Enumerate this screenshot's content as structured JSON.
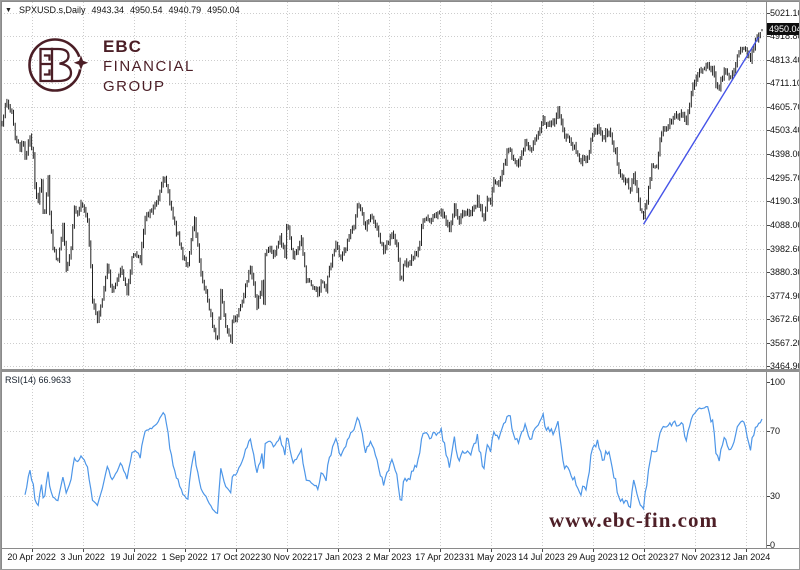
{
  "header": {
    "collapse_icon": "▼",
    "symbol": "SPXUSD.s,Daily",
    "open": "4943.34",
    "high": "4950.54",
    "low": "4940.79",
    "close": "4950.04"
  },
  "logo": {
    "line1": "EBC",
    "line2": "FINANCIAL",
    "line3": "GROUP",
    "color": "#4b1e26"
  },
  "watermark": {
    "text": "www.ebc-fin.com",
    "color": "#4e1f27"
  },
  "rsi_panel": {
    "label": "RSI(14) 66.9633",
    "scale_labels": [
      "100",
      "70",
      "30",
      "0"
    ],
    "line_color": "#4d96e8"
  },
  "price_scale": {
    "current": "4950.04"
  },
  "chart_data": {
    "type": "ohlc",
    "symbol": "SPXUSD.s",
    "timeframe": "Daily",
    "title": "SPXUSD.s,Daily 4943.34 4950.54 4940.79 4950.04",
    "last_bar": {
      "open": 4943.34,
      "high": 4950.54,
      "low": 4940.79,
      "close": 4950.04
    },
    "bar_color": "#222222",
    "grid": "dotted",
    "legend_position": "none",
    "y_ticks": [
      5021.1,
      4918.8,
      4813.4,
      4711.1,
      4605.7,
      4503.4,
      4398.0,
      4295.7,
      4190.3,
      4088.0,
      3982.6,
      3880.3,
      3774.9,
      3672.6,
      3567.2,
      3464.9
    ],
    "ylim": [
      3464.9,
      5021.1
    ],
    "x_ticks": [
      "20 Apr 2022",
      "3 Jun 2022",
      "19 Jul 2022",
      "1 Sep 2022",
      "17 Oct 2022",
      "30 Nov 2022",
      "17 Jan 2023",
      "2 Mar 2023",
      "17 Apr 2023",
      "31 May 2023",
      "14 Jul 2023",
      "29 Aug 2023",
      "12 Oct 2023",
      "27 Nov 2023",
      "12 Jan 2024"
    ],
    "x_tick_bars": [
      18,
      49,
      80,
      111,
      142,
      173,
      204,
      235,
      266,
      297,
      328,
      359,
      390,
      421,
      452
    ],
    "bars_total": 463,
    "price_anchors": [
      [
        0,
        4520
      ],
      [
        2,
        4631
      ],
      [
        6,
        4582
      ],
      [
        8,
        4481
      ],
      [
        11,
        4413
      ],
      [
        13,
        4446
      ],
      [
        14,
        4393
      ],
      [
        17,
        4462
      ],
      [
        19,
        4393
      ],
      [
        20,
        4272
      ],
      [
        22,
        4175
      ],
      [
        24,
        4287
      ],
      [
        25,
        4132
      ],
      [
        26,
        4155
      ],
      [
        28,
        4300
      ],
      [
        29,
        4147
      ],
      [
        31,
        3991
      ],
      [
        34,
        3930
      ],
      [
        37,
        4089
      ],
      [
        39,
        3900
      ],
      [
        42,
        3979
      ],
      [
        44,
        4158
      ],
      [
        46,
        4132
      ],
      [
        48,
        4177
      ],
      [
        52,
        4116
      ],
      [
        54,
        3901
      ],
      [
        55,
        3750
      ],
      [
        58,
        3667
      ],
      [
        61,
        3765
      ],
      [
        64,
        3912
      ],
      [
        67,
        3785
      ],
      [
        72,
        3899
      ],
      [
        76,
        3790
      ],
      [
        79,
        3937
      ],
      [
        82,
        3962
      ],
      [
        84,
        3921
      ],
      [
        87,
        4130
      ],
      [
        91,
        4152
      ],
      [
        95,
        4210
      ],
      [
        98,
        4305
      ],
      [
        101,
        4228
      ],
      [
        106,
        4058
      ],
      [
        110,
        3955
      ],
      [
        113,
        3908
      ],
      [
        117,
        4110
      ],
      [
        121,
        3873
      ],
      [
        124,
        3790
      ],
      [
        128,
        3647
      ],
      [
        131,
        3586
      ],
      [
        133,
        3791
      ],
      [
        136,
        3640
      ],
      [
        139,
        3577
      ],
      [
        140,
        3670
      ],
      [
        142,
        3678
      ],
      [
        146,
        3753
      ],
      [
        151,
        3901
      ],
      [
        152,
        3872
      ],
      [
        155,
        3720
      ],
      [
        158,
        3828
      ],
      [
        159,
        3748
      ],
      [
        160,
        3956
      ],
      [
        163,
        3992
      ],
      [
        165,
        3947
      ],
      [
        169,
        4027
      ],
      [
        172,
        3958
      ],
      [
        173,
        4080
      ],
      [
        174,
        4077
      ],
      [
        177,
        3941
      ],
      [
        182,
        4020
      ],
      [
        185,
        3852
      ],
      [
        189,
        3822
      ],
      [
        192,
        3783
      ],
      [
        194,
        3840
      ],
      [
        197,
        3808
      ],
      [
        199,
        3892
      ],
      [
        203,
        3999
      ],
      [
        206,
        3929
      ],
      [
        208,
        3973
      ],
      [
        212,
        4060
      ],
      [
        214,
        4077
      ],
      [
        216,
        4180
      ],
      [
        221,
        4081
      ],
      [
        224,
        4136
      ],
      [
        227,
        4079
      ],
      [
        232,
        3970
      ],
      [
        233,
        3983
      ],
      [
        237,
        4046
      ],
      [
        240,
        3992
      ],
      [
        242,
        3862
      ],
      [
        243,
        3856
      ],
      [
        244,
        3920
      ],
      [
        247,
        3917
      ],
      [
        250,
        3937
      ],
      [
        253,
        3978
      ],
      [
        256,
        4109
      ],
      [
        260,
        4105
      ],
      [
        265,
        4138
      ],
      [
        267,
        4155
      ],
      [
        272,
        4071
      ],
      [
        275,
        4169
      ],
      [
        278,
        4091
      ],
      [
        280,
        4136
      ],
      [
        284,
        4131
      ],
      [
        289,
        4198
      ],
      [
        293,
        4115
      ],
      [
        295,
        4205
      ],
      [
        297,
        4180
      ],
      [
        299,
        4282
      ],
      [
        302,
        4268
      ],
      [
        308,
        4426
      ],
      [
        309,
        4410
      ],
      [
        314,
        4348
      ],
      [
        318,
        4450
      ],
      [
        321,
        4411
      ],
      [
        325,
        4472
      ],
      [
        329,
        4555
      ],
      [
        331,
        4535
      ],
      [
        336,
        4537
      ],
      [
        338,
        4589
      ],
      [
        342,
        4478
      ],
      [
        345,
        4468
      ],
      [
        352,
        4370
      ],
      [
        356,
        4376
      ],
      [
        359,
        4497
      ],
      [
        361,
        4508
      ],
      [
        362,
        4516
      ],
      [
        365,
        4465
      ],
      [
        369,
        4505
      ],
      [
        373,
        4402
      ],
      [
        375,
        4330
      ],
      [
        378,
        4274
      ],
      [
        380,
        4288
      ],
      [
        382,
        4229
      ],
      [
        384,
        4309
      ],
      [
        386,
        4224
      ],
      [
        388,
        4160
      ],
      [
        390,
        4117
      ],
      [
        393,
        4238
      ],
      [
        395,
        4358
      ],
      [
        398,
        4347
      ],
      [
        401,
        4496
      ],
      [
        404,
        4514
      ],
      [
        408,
        4559
      ],
      [
        411,
        4568
      ],
      [
        413,
        4594
      ],
      [
        416,
        4549
      ],
      [
        420,
        4707
      ],
      [
        425,
        4768
      ],
      [
        430,
        4783
      ],
      [
        432,
        4770
      ],
      [
        434,
        4704
      ],
      [
        436,
        4697
      ],
      [
        439,
        4780
      ],
      [
        442,
        4739
      ],
      [
        445,
        4780
      ],
      [
        448,
        4839
      ],
      [
        452,
        4868
      ],
      [
        455,
        4820
      ],
      [
        457,
        4880
      ],
      [
        459,
        4910
      ],
      [
        462,
        4950.04
      ]
    ],
    "trendline": {
      "from_bar": 390,
      "from_price": 4090,
      "to_bar": 460,
      "to_price": 4915,
      "color": "#4553e8"
    },
    "rsi": {
      "period": 14,
      "current": 66.9633,
      "levels": [
        70,
        30
      ],
      "range": [
        0,
        100
      ]
    }
  }
}
